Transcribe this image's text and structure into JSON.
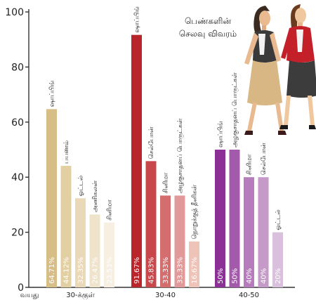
{
  "chart_data": {
    "type": "bar",
    "title": [
      "பெண்களின்",
      "செலவு விவரம்"
    ],
    "xlabel": "வயது",
    "ylim": [
      0,
      100
    ],
    "yticks": [
      0,
      20,
      40,
      60,
      80,
      100
    ],
    "grid": false,
    "groups": [
      {
        "name": "30-க்குள்",
        "colors": [
          "#d7bd86",
          "#e2cfa2",
          "#ead9b8",
          "#f0e3cc",
          "#f6efe2"
        ],
        "bars": [
          {
            "category": "ஷாப்பிங்",
            "value": 64.71,
            "label": "64.71%"
          },
          {
            "category": "பயணம்",
            "value": 44.12,
            "label": "44.12%"
          },
          {
            "category": "ஓட்டல்",
            "value": 32.35,
            "label": "32.35%"
          },
          {
            "category": "அணிகலன்",
            "value": 26.47,
            "label": "26.47%"
          },
          {
            "category": "சினிமா",
            "value": 23.53,
            "label": "23.53%"
          }
        ]
      },
      {
        "name": "30-40",
        "colors": [
          "#b8262b",
          "#c8474a",
          "#d46d6e",
          "#e1999a",
          "#eec3b8"
        ],
        "bars": [
          {
            "category": "ஷாப்பிங்",
            "value": 91.67,
            "label": "91.67%"
          },
          {
            "category": "செல்போன்",
            "value": 45.83,
            "label": "45.83%"
          },
          {
            "category": "சினிமா",
            "value": 33.33,
            "label": "33.33%"
          },
          {
            "category": "அழகுசாதனப் பொருட்கள்",
            "value": 33.33,
            "label": "33.33%"
          },
          {
            "category": "நொறுக்குத் தீனிகள்",
            "value": 16.67,
            "label": "16.67%"
          }
        ]
      },
      {
        "name": "40-50",
        "colors": [
          "#8c2f97",
          "#a35aab",
          "#b67cbb",
          "#c59ac8",
          "#d9c0dc"
        ],
        "bars": [
          {
            "category": "ஷாப்பிங்",
            "value": 50,
            "label": "50%"
          },
          {
            "category": "அழகுசாதனப் பொருட்கள்",
            "value": 50,
            "label": "50%"
          },
          {
            "category": "சினிமா",
            "value": 40,
            "label": "40%"
          },
          {
            "category": "செல்போன்",
            "value": 40,
            "label": "40%"
          },
          {
            "category": "ஓட்டல்",
            "value": 20,
            "label": "20%"
          }
        ]
      }
    ]
  }
}
